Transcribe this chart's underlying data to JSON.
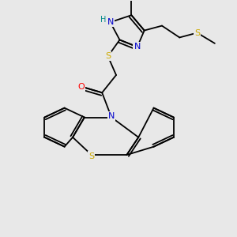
{
  "bg_color": "#e8e8e8",
  "atom_colors": {
    "C": "#000000",
    "N": "#0000cc",
    "S": "#ccaa00",
    "O": "#ff0000",
    "H": "#008888"
  },
  "figsize": [
    3.0,
    3.0
  ],
  "dpi": 100
}
